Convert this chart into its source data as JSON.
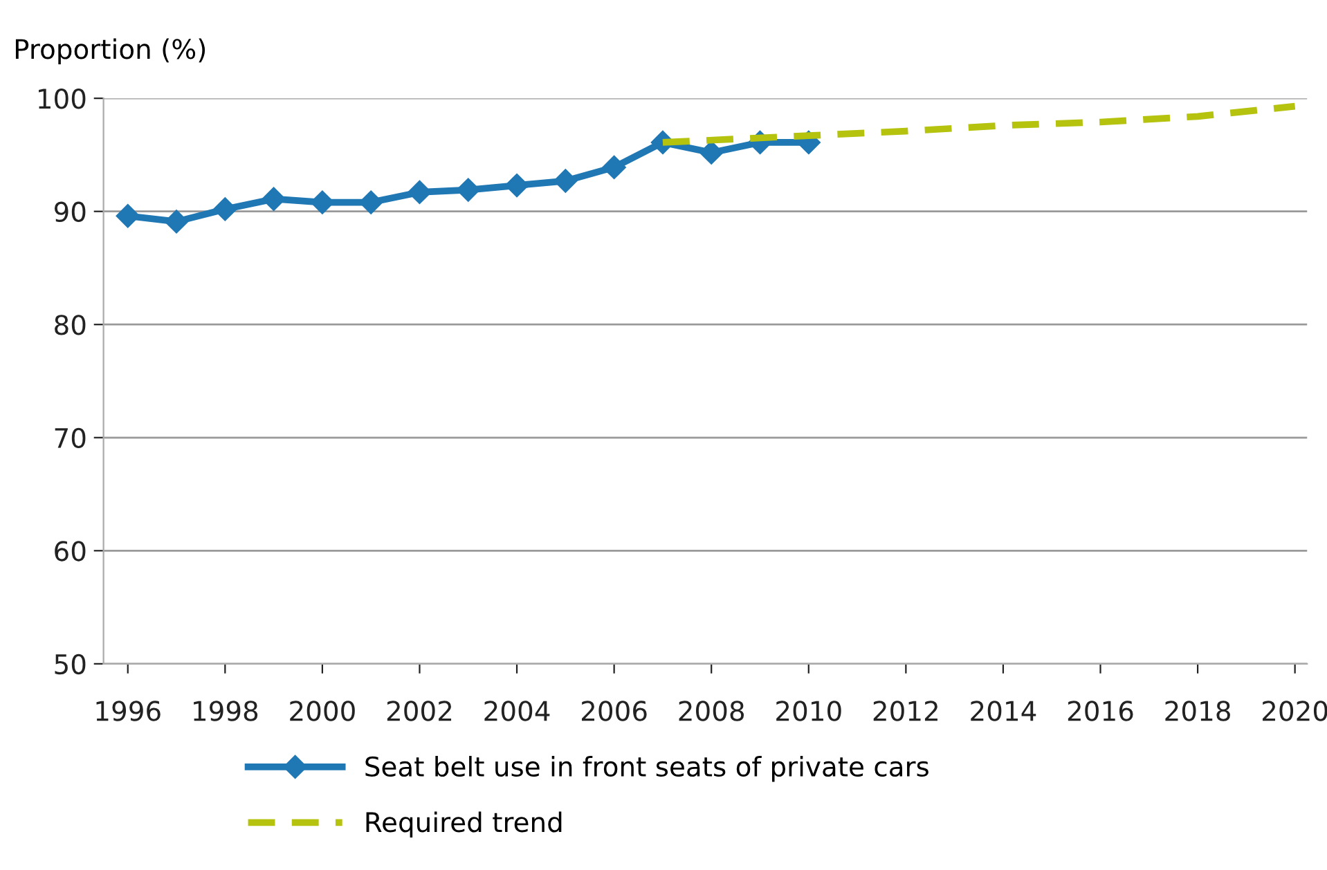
{
  "chart_data": {
    "type": "line",
    "ylabel": "Proportion (%)",
    "xlim": [
      1995.5,
      2020.25
    ],
    "xticks": [
      1996,
      1998,
      2000,
      2002,
      2004,
      2006,
      2008,
      2010,
      2012,
      2014,
      2016,
      2018,
      2020
    ],
    "ylim": [
      50,
      100
    ],
    "yticks": [
      50,
      60,
      70,
      80,
      90,
      100
    ],
    "grid": "y",
    "legend": "bottom",
    "series": [
      {
        "name": "Seat belt use in front seats of private cars",
        "color": "#1f77b4",
        "marker": "diamond",
        "line_style": "solid",
        "x": [
          1996,
          1997,
          1998,
          1999,
          2000,
          2001,
          2002,
          2003,
          2004,
          2005,
          2006,
          2007,
          2008,
          2009,
          2010
        ],
        "values": [
          89.6,
          89.1,
          90.2,
          91.1,
          90.8,
          90.8,
          91.7,
          91.9,
          92.3,
          92.7,
          93.9,
          96.1,
          95.2,
          96.1,
          96.1
        ]
      },
      {
        "name": "Required trend",
        "color": "#b5c20e",
        "marker": "none",
        "line_style": "dashed",
        "x": [
          2007,
          2010,
          2012,
          2014,
          2016,
          2018,
          2020
        ],
        "values": [
          96.1,
          96.7,
          97.1,
          97.6,
          97.9,
          98.4,
          99.3
        ]
      }
    ]
  }
}
